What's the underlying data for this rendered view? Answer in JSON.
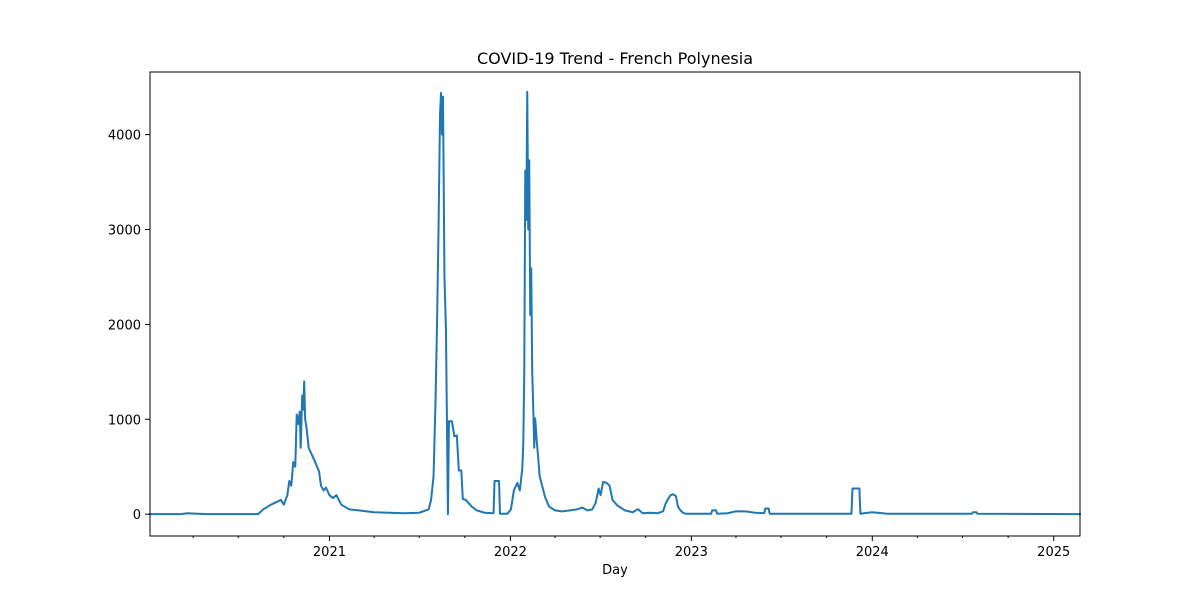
{
  "chart_data": {
    "type": "line",
    "title": "COVID-19 Trend - French Polynesia",
    "xlabel": "Day",
    "ylabel": "",
    "x_ticks": [
      "2021",
      "2022",
      "2023",
      "2024",
      "2025"
    ],
    "y_ticks": [
      "0",
      "1000",
      "2000",
      "3000",
      "4000"
    ],
    "xlim": [
      "2020-01-05",
      "2025-02-23"
    ],
    "ylim": [
      -230,
      4660
    ],
    "grid": false,
    "line_color": "#1f77b4",
    "series": [
      {
        "points": [
          [
            "2020-01-05",
            0
          ],
          [
            "2020-03-05",
            0
          ],
          [
            "2020-03-20",
            10
          ],
          [
            "2020-04-10",
            5
          ],
          [
            "2020-05-01",
            0
          ],
          [
            "2020-08-10",
            0
          ],
          [
            "2020-08-20",
            50
          ],
          [
            "2020-09-05",
            100
          ],
          [
            "2020-09-25",
            150
          ],
          [
            "2020-10-01",
            100
          ],
          [
            "2020-10-08",
            200
          ],
          [
            "2020-10-12",
            350
          ],
          [
            "2020-10-16",
            300
          ],
          [
            "2020-10-20",
            550
          ],
          [
            "2020-10-24",
            500
          ],
          [
            "2020-10-27",
            1050
          ],
          [
            "2020-10-30",
            950
          ],
          [
            "2020-11-02",
            1080
          ],
          [
            "2020-11-04",
            700
          ],
          [
            "2020-11-07",
            1250
          ],
          [
            "2020-11-09",
            1100
          ],
          [
            "2020-11-11",
            1400
          ],
          [
            "2020-11-13",
            1000
          ],
          [
            "2020-11-16",
            900
          ],
          [
            "2020-11-20",
            700
          ],
          [
            "2020-11-27",
            620
          ],
          [
            "2020-12-04",
            540
          ],
          [
            "2020-12-11",
            450
          ],
          [
            "2020-12-15",
            300
          ],
          [
            "2020-12-20",
            250
          ],
          [
            "2020-12-25",
            280
          ],
          [
            "2021-01-01",
            200
          ],
          [
            "2021-01-08",
            170
          ],
          [
            "2021-01-15",
            200
          ],
          [
            "2021-01-25",
            100
          ],
          [
            "2021-02-10",
            50
          ],
          [
            "2021-03-01",
            40
          ],
          [
            "2021-04-01",
            20
          ],
          [
            "2021-05-01",
            15
          ],
          [
            "2021-06-01",
            10
          ],
          [
            "2021-07-01",
            15
          ],
          [
            "2021-07-20",
            50
          ],
          [
            "2021-07-25",
            150
          ],
          [
            "2021-07-30",
            400
          ],
          [
            "2021-08-03",
            1200
          ],
          [
            "2021-08-06",
            2000
          ],
          [
            "2021-08-09",
            3000
          ],
          [
            "2021-08-12",
            4200
          ],
          [
            "2021-08-14",
            4440
          ],
          [
            "2021-08-16",
            4000
          ],
          [
            "2021-08-18",
            4400
          ],
          [
            "2021-08-21",
            2500
          ],
          [
            "2021-08-24",
            1950
          ],
          [
            "2021-08-28",
            0
          ],
          [
            "2021-08-30",
            980
          ],
          [
            "2021-09-05",
            980
          ],
          [
            "2021-09-10",
            820
          ],
          [
            "2021-09-15",
            830
          ],
          [
            "2021-09-19",
            460
          ],
          [
            "2021-09-24",
            460
          ],
          [
            "2021-09-27",
            160
          ],
          [
            "2021-10-03",
            150
          ],
          [
            "2021-10-15",
            80
          ],
          [
            "2021-10-25",
            40
          ],
          [
            "2021-11-10",
            15
          ],
          [
            "2021-11-28",
            10
          ],
          [
            "2021-11-30",
            350
          ],
          [
            "2021-12-09",
            350
          ],
          [
            "2021-12-11",
            5
          ],
          [
            "2021-12-26",
            5
          ],
          [
            "2022-01-02",
            50
          ],
          [
            "2022-01-08",
            250
          ],
          [
            "2022-01-15",
            330
          ],
          [
            "2022-01-20",
            250
          ],
          [
            "2022-01-25",
            480
          ],
          [
            "2022-01-27",
            750
          ],
          [
            "2022-01-29",
            1500
          ],
          [
            "2022-01-31",
            3620
          ],
          [
            "2022-02-02",
            3100
          ],
          [
            "2022-02-04",
            4450
          ],
          [
            "2022-02-06",
            3000
          ],
          [
            "2022-02-08",
            3730
          ],
          [
            "2022-02-10",
            2100
          ],
          [
            "2022-02-12",
            2590
          ],
          [
            "2022-02-14",
            1500
          ],
          [
            "2022-02-16",
            1150
          ],
          [
            "2022-02-18",
            700
          ],
          [
            "2022-02-20",
            1010
          ],
          [
            "2022-02-23",
            780
          ],
          [
            "2022-02-26",
            600
          ],
          [
            "2022-03-01",
            400
          ],
          [
            "2022-03-06",
            300
          ],
          [
            "2022-03-12",
            180
          ],
          [
            "2022-03-20",
            80
          ],
          [
            "2022-04-01",
            40
          ],
          [
            "2022-04-15",
            30
          ],
          [
            "2022-05-01",
            40
          ],
          [
            "2022-05-15",
            50
          ],
          [
            "2022-05-26",
            70
          ],
          [
            "2022-06-05",
            40
          ],
          [
            "2022-06-15",
            50
          ],
          [
            "2022-06-22",
            120
          ],
          [
            "2022-06-28",
            270
          ],
          [
            "2022-07-02",
            200
          ],
          [
            "2022-07-07",
            340
          ],
          [
            "2022-07-14",
            330
          ],
          [
            "2022-07-20",
            300
          ],
          [
            "2022-07-26",
            150
          ],
          [
            "2022-08-05",
            90
          ],
          [
            "2022-08-20",
            40
          ],
          [
            "2022-09-05",
            20
          ],
          [
            "2022-09-14",
            50
          ],
          [
            "2022-09-16",
            50
          ],
          [
            "2022-09-25",
            10
          ],
          [
            "2022-10-10",
            15
          ],
          [
            "2022-10-25",
            10
          ],
          [
            "2022-11-05",
            30
          ],
          [
            "2022-11-10",
            110
          ],
          [
            "2022-11-15",
            160
          ],
          [
            "2022-11-20",
            200
          ],
          [
            "2022-11-25",
            210
          ],
          [
            "2022-12-01",
            190
          ],
          [
            "2022-12-05",
            80
          ],
          [
            "2022-12-10",
            40
          ],
          [
            "2022-12-15",
            15
          ],
          [
            "2022-12-20",
            5
          ],
          [
            "2023-02-10",
            5
          ],
          [
            "2023-02-12",
            40
          ],
          [
            "2023-02-20",
            40
          ],
          [
            "2023-02-22",
            5
          ],
          [
            "2023-03-15",
            10
          ],
          [
            "2023-04-01",
            30
          ],
          [
            "2023-04-20",
            30
          ],
          [
            "2023-05-10",
            15
          ],
          [
            "2023-05-28",
            10
          ],
          [
            "2023-05-30",
            60
          ],
          [
            "2023-06-06",
            60
          ],
          [
            "2023-06-08",
            5
          ],
          [
            "2023-09-01",
            5
          ],
          [
            "2023-11-20",
            5
          ],
          [
            "2023-11-22",
            270
          ],
          [
            "2023-12-06",
            270
          ],
          [
            "2023-12-08",
            5
          ],
          [
            "2023-12-15",
            10
          ],
          [
            "2024-01-01",
            20
          ],
          [
            "2024-02-01",
            5
          ],
          [
            "2024-06-01",
            5
          ],
          [
            "2024-07-20",
            5
          ],
          [
            "2024-07-22",
            20
          ],
          [
            "2024-07-29",
            20
          ],
          [
            "2024-07-31",
            5
          ],
          [
            "2025-02-23",
            0
          ]
        ]
      }
    ]
  }
}
